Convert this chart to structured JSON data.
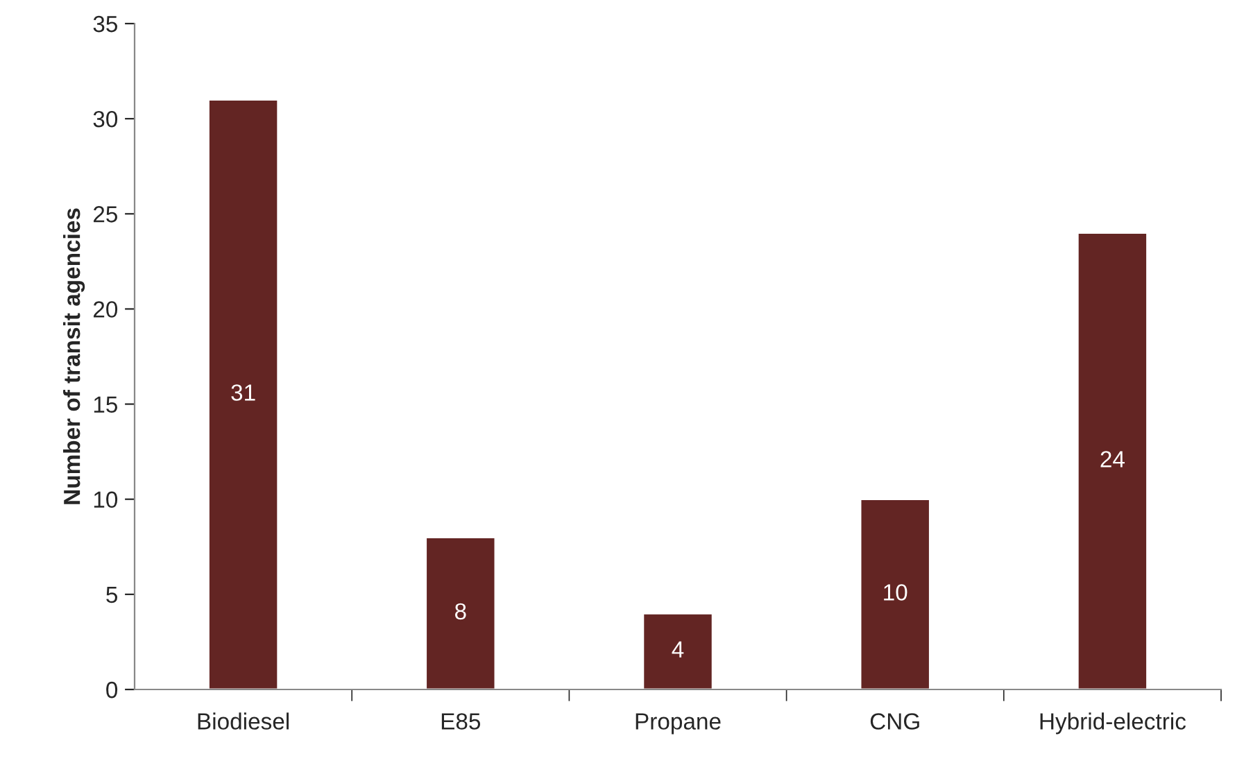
{
  "chart_data": {
    "type": "bar",
    "ylabel": "Number of transit agencies",
    "categories": [
      "Biodiesel",
      "E85",
      "Propane",
      "CNG",
      "Hybrid-electric"
    ],
    "values": [
      31,
      8,
      4,
      10,
      24
    ],
    "color": "#632523",
    "ylim": [
      0,
      35
    ],
    "yticks": [
      0,
      5,
      10,
      15,
      20,
      25,
      30,
      35
    ],
    "grid": false,
    "data_labels": true
  }
}
